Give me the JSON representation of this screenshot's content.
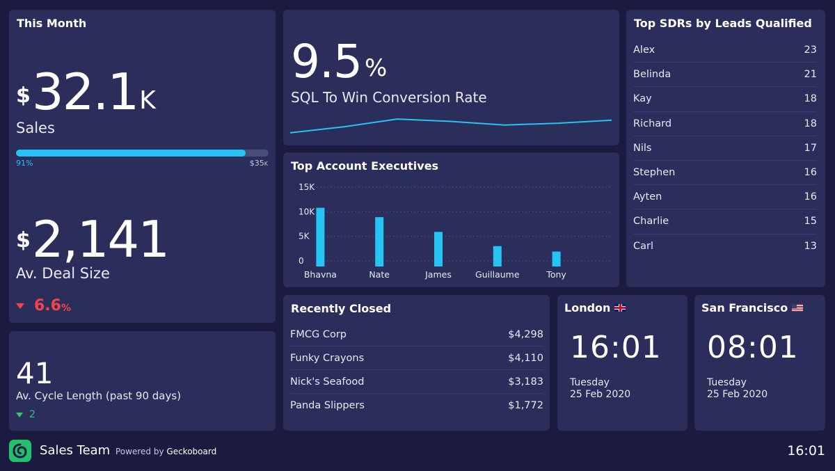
{
  "this_month": {
    "title": "This Month",
    "sales": {
      "currency": "$",
      "value": "32.1",
      "suffix": "K",
      "label": "Sales"
    },
    "progress": {
      "percent_label": "91%",
      "percent": 91,
      "target_currency": "$",
      "target_value": "35",
      "target_suffix": "K"
    },
    "deal_size": {
      "currency": "$",
      "value": "2,141",
      "label": "Av. Deal Size"
    },
    "deal_trend": {
      "value": "6.6",
      "unit": "%",
      "direction": "down",
      "color": "#f3434d"
    }
  },
  "cycle": {
    "value": "41",
    "label": "Av. Cycle Length (past 90 days)",
    "trend_value": "2",
    "trend_direction": "down",
    "trend_color": "#2ecc71"
  },
  "conversion": {
    "value": "9.5",
    "unit": "%",
    "label": "SQL To Win Conversion Rate",
    "sparkline": [
      0.12,
      0.45,
      0.88,
      0.75,
      0.55,
      0.65,
      0.82
    ]
  },
  "account_execs": {
    "title": "Top Account Executives",
    "chart_data": {
      "type": "bar",
      "categories": [
        "Bhavna",
        "Nate",
        "James",
        "Guillaume",
        "Tony"
      ],
      "values": [
        10800,
        8900,
        5900,
        3000,
        1900
      ],
      "ylim": [
        0,
        15000
      ],
      "yticks": [
        "0",
        "5K",
        "10K",
        "15K"
      ],
      "ytick_values": [
        0,
        5000,
        10000,
        15000
      ],
      "color": "#25c4f4"
    }
  },
  "sdrs": {
    "title": "Top SDRs by Leads Qualified",
    "rows": [
      {
        "name": "Alex",
        "count": "23"
      },
      {
        "name": "Belinda",
        "count": "21"
      },
      {
        "name": "Kay",
        "count": "18"
      },
      {
        "name": "Richard",
        "count": "18"
      },
      {
        "name": "Nils",
        "count": "17"
      },
      {
        "name": "Stephen",
        "count": "16"
      },
      {
        "name": "Ayten",
        "count": "16"
      },
      {
        "name": "Charlie",
        "count": "15"
      },
      {
        "name": "Carl",
        "count": "13"
      }
    ]
  },
  "recently_closed": {
    "title": "Recently Closed",
    "rows": [
      {
        "name": "FMCG Corp",
        "amount": "$4,298"
      },
      {
        "name": "Funky Crayons",
        "amount": "$4,110"
      },
      {
        "name": "Nick's Seafood",
        "amount": "$3,183"
      },
      {
        "name": "Panda Slippers",
        "amount": "$1,772"
      }
    ]
  },
  "clocks": [
    {
      "city": "London",
      "flag": "uk-flag-icon",
      "time": "16:01",
      "day": "Tuesday",
      "date": "25 Feb 2020"
    },
    {
      "city": "San Francisco",
      "flag": "us-flag-icon",
      "time": "08:01",
      "day": "Tuesday",
      "date": "25 Feb 2020"
    }
  ],
  "footer": {
    "team": "Sales Team",
    "powered_prefix": "Powered by",
    "powered_brand": "Geckoboard",
    "time": "16:01",
    "logo_icon": "geckoboard-logo-icon"
  },
  "colors": {
    "background": "#1b1a3f",
    "card": "#2b2e5b",
    "accent": "#25c4f4",
    "negative": "#f3434d",
    "positive": "#2ecc71",
    "logo": "#1fc26b"
  }
}
